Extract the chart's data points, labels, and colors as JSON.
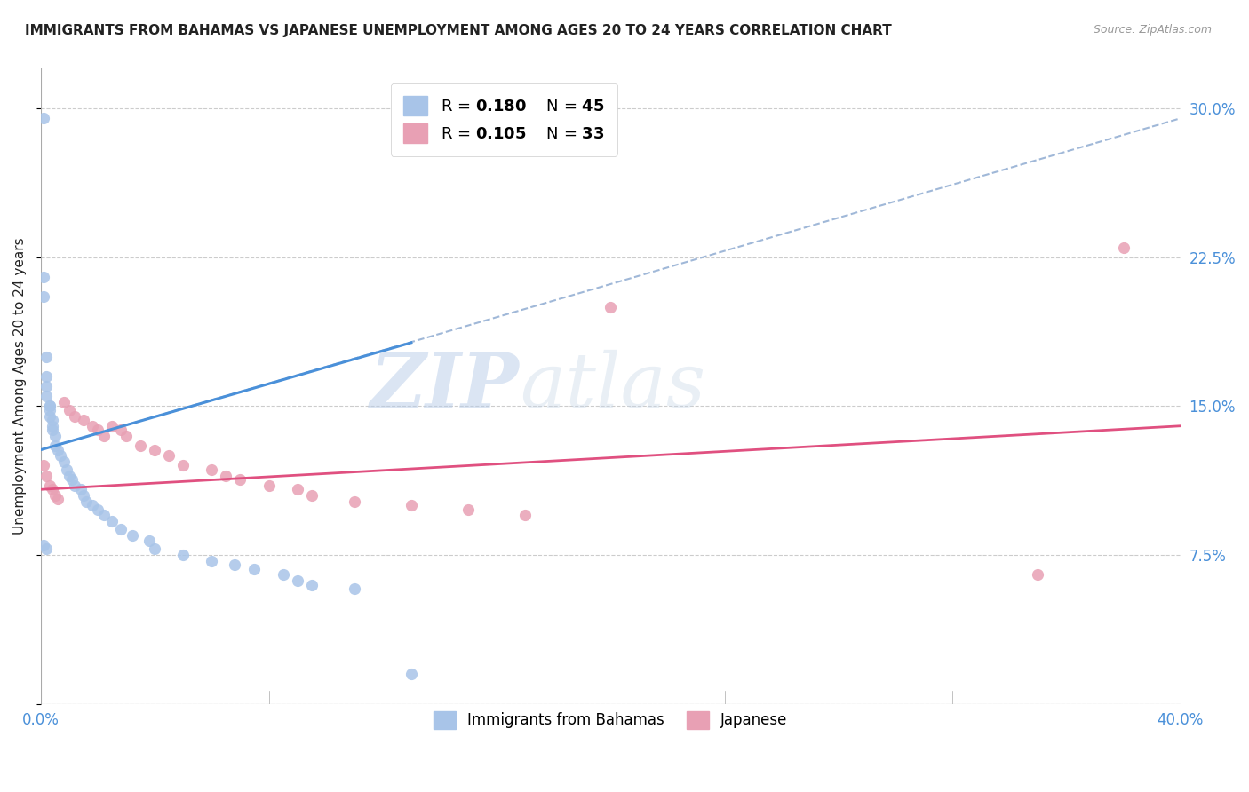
{
  "title": "IMMIGRANTS FROM BAHAMAS VS JAPANESE UNEMPLOYMENT AMONG AGES 20 TO 24 YEARS CORRELATION CHART",
  "source": "Source: ZipAtlas.com",
  "ylabel": "Unemployment Among Ages 20 to 24 years",
  "xlim": [
    0.0,
    0.4
  ],
  "ylim": [
    0.0,
    0.32
  ],
  "yticks": [
    0.0,
    0.075,
    0.15,
    0.225,
    0.3
  ],
  "ytick_labels": [
    "",
    "7.5%",
    "15.0%",
    "22.5%",
    "30.0%"
  ],
  "series": [
    {
      "name": "Immigrants from Bahamas",
      "color": "#a8c4e8",
      "R": 0.18,
      "N": 45,
      "x": [
        0.001,
        0.001,
        0.001,
        0.002,
        0.002,
        0.002,
        0.002,
        0.003,
        0.003,
        0.003,
        0.003,
        0.004,
        0.004,
        0.004,
        0.005,
        0.005,
        0.006,
        0.007,
        0.008,
        0.009,
        0.01,
        0.011,
        0.012,
        0.014,
        0.015,
        0.016,
        0.018,
        0.02,
        0.022,
        0.025,
        0.028,
        0.032,
        0.038,
        0.04,
        0.05,
        0.06,
        0.068,
        0.075,
        0.085,
        0.09,
        0.095,
        0.11,
        0.13,
        0.001,
        0.002
      ],
      "y": [
        0.295,
        0.215,
        0.205,
        0.175,
        0.165,
        0.16,
        0.155,
        0.15,
        0.15,
        0.148,
        0.145,
        0.143,
        0.14,
        0.138,
        0.135,
        0.13,
        0.128,
        0.125,
        0.122,
        0.118,
        0.115,
        0.113,
        0.11,
        0.108,
        0.105,
        0.102,
        0.1,
        0.098,
        0.095,
        0.092,
        0.088,
        0.085,
        0.082,
        0.078,
        0.075,
        0.072,
        0.07,
        0.068,
        0.065,
        0.062,
        0.06,
        0.058,
        0.015,
        0.08,
        0.078
      ]
    },
    {
      "name": "Japanese",
      "color": "#e8a0b4",
      "R": 0.105,
      "N": 33,
      "x": [
        0.001,
        0.002,
        0.003,
        0.004,
        0.005,
        0.006,
        0.008,
        0.01,
        0.012,
        0.015,
        0.018,
        0.02,
        0.022,
        0.025,
        0.028,
        0.03,
        0.035,
        0.04,
        0.045,
        0.05,
        0.06,
        0.065,
        0.07,
        0.08,
        0.09,
        0.095,
        0.11,
        0.13,
        0.15,
        0.17,
        0.2,
        0.35,
        0.38
      ],
      "y": [
        0.12,
        0.115,
        0.11,
        0.108,
        0.105,
        0.103,
        0.152,
        0.148,
        0.145,
        0.143,
        0.14,
        0.138,
        0.135,
        0.14,
        0.138,
        0.135,
        0.13,
        0.128,
        0.125,
        0.12,
        0.118,
        0.115,
        0.113,
        0.11,
        0.108,
        0.105,
        0.102,
        0.1,
        0.098,
        0.095,
        0.2,
        0.065,
        0.23
      ]
    }
  ],
  "trendline_blue_dashed": {
    "x_start": 0.0,
    "x_end": 0.4,
    "y_start": 0.128,
    "y_end": 0.295,
    "color": "#a0b8d8",
    "linewidth": 1.5
  },
  "trendline_blue_solid": {
    "x_start": 0.0,
    "x_end": 0.13,
    "y_start": 0.128,
    "y_end": 0.182,
    "color": "#4a90d9",
    "linewidth": 2.2
  },
  "trendline_pink": {
    "x_start": 0.0,
    "x_end": 0.4,
    "y_start": 0.108,
    "y_end": 0.14,
    "color": "#e05080",
    "linewidth": 2.0
  },
  "watermark_zip": "ZIP",
  "watermark_atlas": "atlas",
  "background_color": "#ffffff",
  "grid_color": "#cccccc",
  "title_color": "#222222",
  "axis_color": "#4a90d9",
  "title_fontsize": 11,
  "source_fontsize": 9,
  "ylabel_fontsize": 11
}
